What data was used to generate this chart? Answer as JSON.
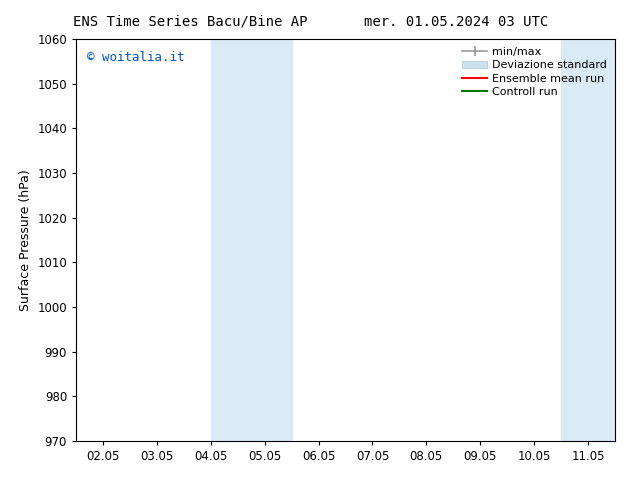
{
  "title_left": "ENS Time Series Bacu/Bine AP",
  "title_right": "mer. 01.05.2024 03 UTC",
  "ylabel": "Surface Pressure (hPa)",
  "ylim": [
    970,
    1060
  ],
  "yticks": [
    970,
    980,
    990,
    1000,
    1010,
    1020,
    1030,
    1040,
    1050,
    1060
  ],
  "xtick_labels": [
    "02.05",
    "03.05",
    "04.05",
    "05.05",
    "06.05",
    "07.05",
    "08.05",
    "09.05",
    "10.05",
    "11.05"
  ],
  "xtick_positions": [
    0,
    1,
    2,
    3,
    4,
    5,
    6,
    7,
    8,
    9
  ],
  "xlim": [
    -0.5,
    9.5
  ],
  "watermark": "© woitalia.it",
  "watermark_color": "#0055cc",
  "shade_regions": [
    {
      "x_start": 2.0,
      "x_end": 2.5
    },
    {
      "x_start": 2.5,
      "x_end": 3.5
    },
    {
      "x_start": 8.5,
      "x_end": 9.5
    }
  ],
  "shade_color": "#daeaf7",
  "background_color": "#ffffff",
  "title_fontsize": 10,
  "axis_fontsize": 9,
  "tick_fontsize": 8.5,
  "legend_fontsize": 8,
  "watermark_fontsize": 9
}
